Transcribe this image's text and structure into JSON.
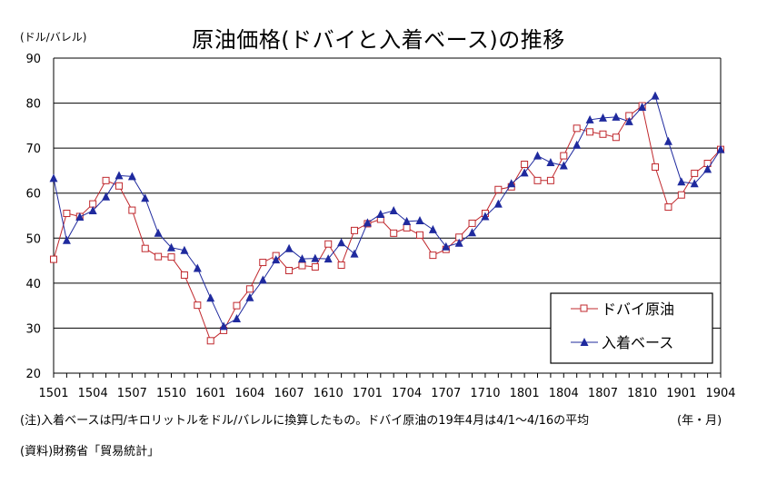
{
  "title": "原油価格(ドバイと入着ベース)の推移",
  "y_unit_label": "(ドル/バレル)",
  "x_unit_label": "(年・月)",
  "note": "(注)入着ベースは円/キロリットルをドル/バレルに換算したもの。ドバイ原油の19年4月は4/1～4/16の平均",
  "source": "(資料)財務省「貿易統計」",
  "colors": {
    "dubai": "#c0282d",
    "cif": "#1f2a9e"
  },
  "chart_data": {
    "type": "line",
    "x": [
      "1501",
      "1502",
      "1503",
      "1504",
      "1505",
      "1506",
      "1507",
      "1508",
      "1509",
      "1510",
      "1511",
      "1512",
      "1601",
      "1602",
      "1603",
      "1604",
      "1605",
      "1606",
      "1607",
      "1608",
      "1609",
      "1610",
      "1611",
      "1612",
      "1701",
      "1702",
      "1703",
      "1704",
      "1705",
      "1706",
      "1707",
      "1708",
      "1709",
      "1710",
      "1711",
      "1712",
      "1801",
      "1802",
      "1803",
      "1804",
      "1805",
      "1806",
      "1807",
      "1808",
      "1809",
      "1810",
      "1811",
      "1812",
      "1901",
      "1902",
      "1903",
      "1904"
    ],
    "x_tick_labels": [
      "1501",
      "1504",
      "1507",
      "1510",
      "1601",
      "1604",
      "1607",
      "1610",
      "1701",
      "1704",
      "1707",
      "1710",
      "1801",
      "1804",
      "1807",
      "1810",
      "1901",
      "1904"
    ],
    "ylim": [
      20,
      90
    ],
    "y_ticks": [
      20,
      30,
      40,
      50,
      60,
      70,
      80,
      90
    ],
    "grid": true,
    "legend_position": "bottom-right",
    "series": [
      {
        "name": "ドバイ原油",
        "marker": "open-square",
        "values": [
          45.3,
          55.5,
          54.8,
          57.6,
          62.8,
          61.6,
          56.2,
          47.7,
          45.9,
          45.8,
          41.8,
          35.1,
          27.2,
          29.5,
          35.0,
          38.7,
          44.6,
          46.1,
          42.8,
          43.9,
          43.6,
          48.7,
          44.0,
          51.7,
          53.2,
          54.2,
          51.1,
          52.3,
          50.7,
          46.2,
          47.5,
          50.2,
          53.3,
          55.5,
          60.8,
          61.4,
          66.4,
          62.8,
          62.8,
          68.3,
          74.4,
          73.6,
          73.1,
          72.4,
          77.2,
          79.4,
          65.8,
          56.9,
          59.6,
          64.4,
          66.6,
          69.7
        ]
      },
      {
        "name": "入着ベース",
        "marker": "filled-triangle",
        "values": [
          63.3,
          49.5,
          54.7,
          56.1,
          59.2,
          63.9,
          63.7,
          58.9,
          51.1,
          47.9,
          47.3,
          43.3,
          36.7,
          30.4,
          32.1,
          36.8,
          40.7,
          45.2,
          47.7,
          45.4,
          45.5,
          45.4,
          49.0,
          46.5,
          53.4,
          55.3,
          56.1,
          53.7,
          53.9,
          51.9,
          48.1,
          48.9,
          51.2,
          54.8,
          57.6,
          62.1,
          64.5,
          68.3,
          66.8,
          66.1,
          70.7,
          76.3,
          76.7,
          76.9,
          75.9,
          79.1,
          81.6,
          71.5,
          62.5,
          62.1,
          65.3,
          69.7
        ]
      }
    ]
  }
}
